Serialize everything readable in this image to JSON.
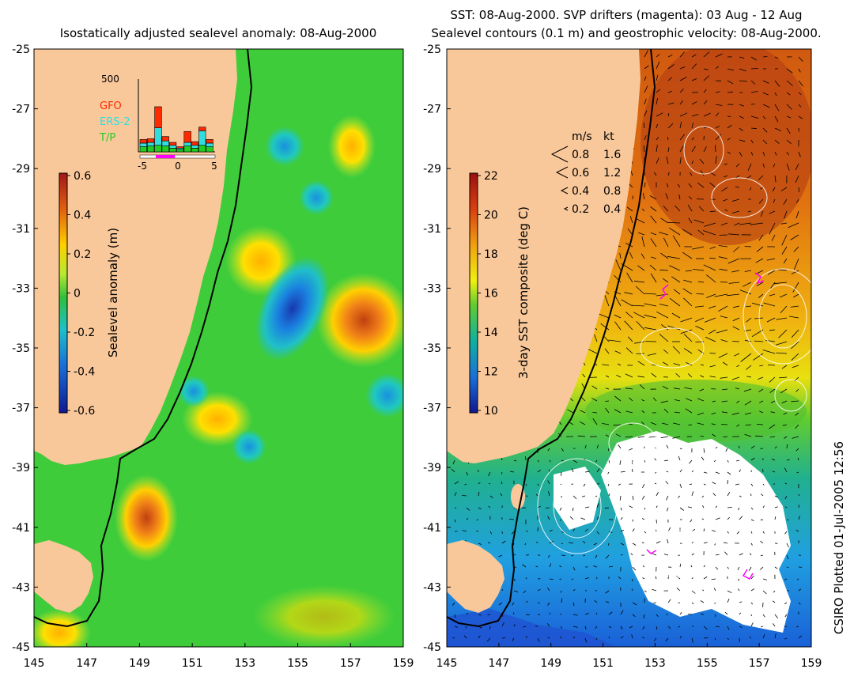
{
  "left_panel": {
    "title": "Isostatically adjusted sealevel anomaly: 08-Aug-2000",
    "colorbar": {
      "label": "Sealevel anomaly (m)",
      "ticks": [
        "0.6",
        "0.4",
        "0.2",
        "0",
        "-0.2",
        "-0.4",
        "-0.6"
      ]
    },
    "histogram": {
      "ymax_label": "500",
      "xticks": [
        "-5",
        "0",
        "5"
      ],
      "legend": [
        {
          "name": "GFO",
          "color": "#ff2a00"
        },
        {
          "name": "ERS-2",
          "color": "#33dddd"
        },
        {
          "name": "T/P",
          "color": "#22cc22"
        }
      ],
      "bars": [
        {
          "tp": 35,
          "ers": 25,
          "gfo": 25
        },
        {
          "tp": 40,
          "ers": 25,
          "gfo": 25
        },
        {
          "tp": 45,
          "ers": 120,
          "gfo": 145
        },
        {
          "tp": 40,
          "ers": 35,
          "gfo": 30
        },
        {
          "tp": 25,
          "ers": 20,
          "gfo": 20
        },
        {
          "tp": 15,
          "ers": 10,
          "gfo": 10
        },
        {
          "tp": 40,
          "ers": 25,
          "gfo": 75
        },
        {
          "tp": 25,
          "ers": 20,
          "gfo": 25
        },
        {
          "tp": 45,
          "ers": 100,
          "gfo": 25
        },
        {
          "tp": 35,
          "ers": 25,
          "gfo": 25
        }
      ]
    }
  },
  "right_panel": {
    "title_line1": "SST: 08-Aug-2000. SVP drifters (magenta): 03 Aug - 12 Aug",
    "title_line2": "Sealevel contours (0.1 m) and geostrophic velocity: 08-Aug-2000.",
    "colorbar": {
      "label": "3-day SST composite (deg C)",
      "ticks": [
        "22",
        "20",
        "18",
        "16",
        "14",
        "12",
        "10"
      ]
    },
    "velocity_legend": {
      "header_ms": "m/s",
      "header_kt": "kt",
      "rows": [
        {
          "ms": "0.8",
          "kt": "1.6"
        },
        {
          "ms": "0.6",
          "kt": "1.2"
        },
        {
          "ms": "0.4",
          "kt": "0.8"
        },
        {
          "ms": "0.2",
          "kt": "0.4"
        }
      ]
    }
  },
  "axes": {
    "y_labels": [
      "-25",
      "-27",
      "-29",
      "-31",
      "-33",
      "-35",
      "-37",
      "-39",
      "-41",
      "-43",
      "-45"
    ],
    "x_labels": [
      "145",
      "147",
      "149",
      "151",
      "153",
      "155",
      "157",
      "159"
    ]
  },
  "credit": "CSIRO Plotted 01-Jul-2005 12:56",
  "colors": {
    "land": "#f9c89a",
    "sla_ocean": "#3fcc3a",
    "sst_warm": "#e06d10",
    "sst_mid": "#ffd000",
    "sst_cool": "#1aa0e0",
    "cloud": "#ffffff",
    "drifter": "#ff00ff"
  }
}
